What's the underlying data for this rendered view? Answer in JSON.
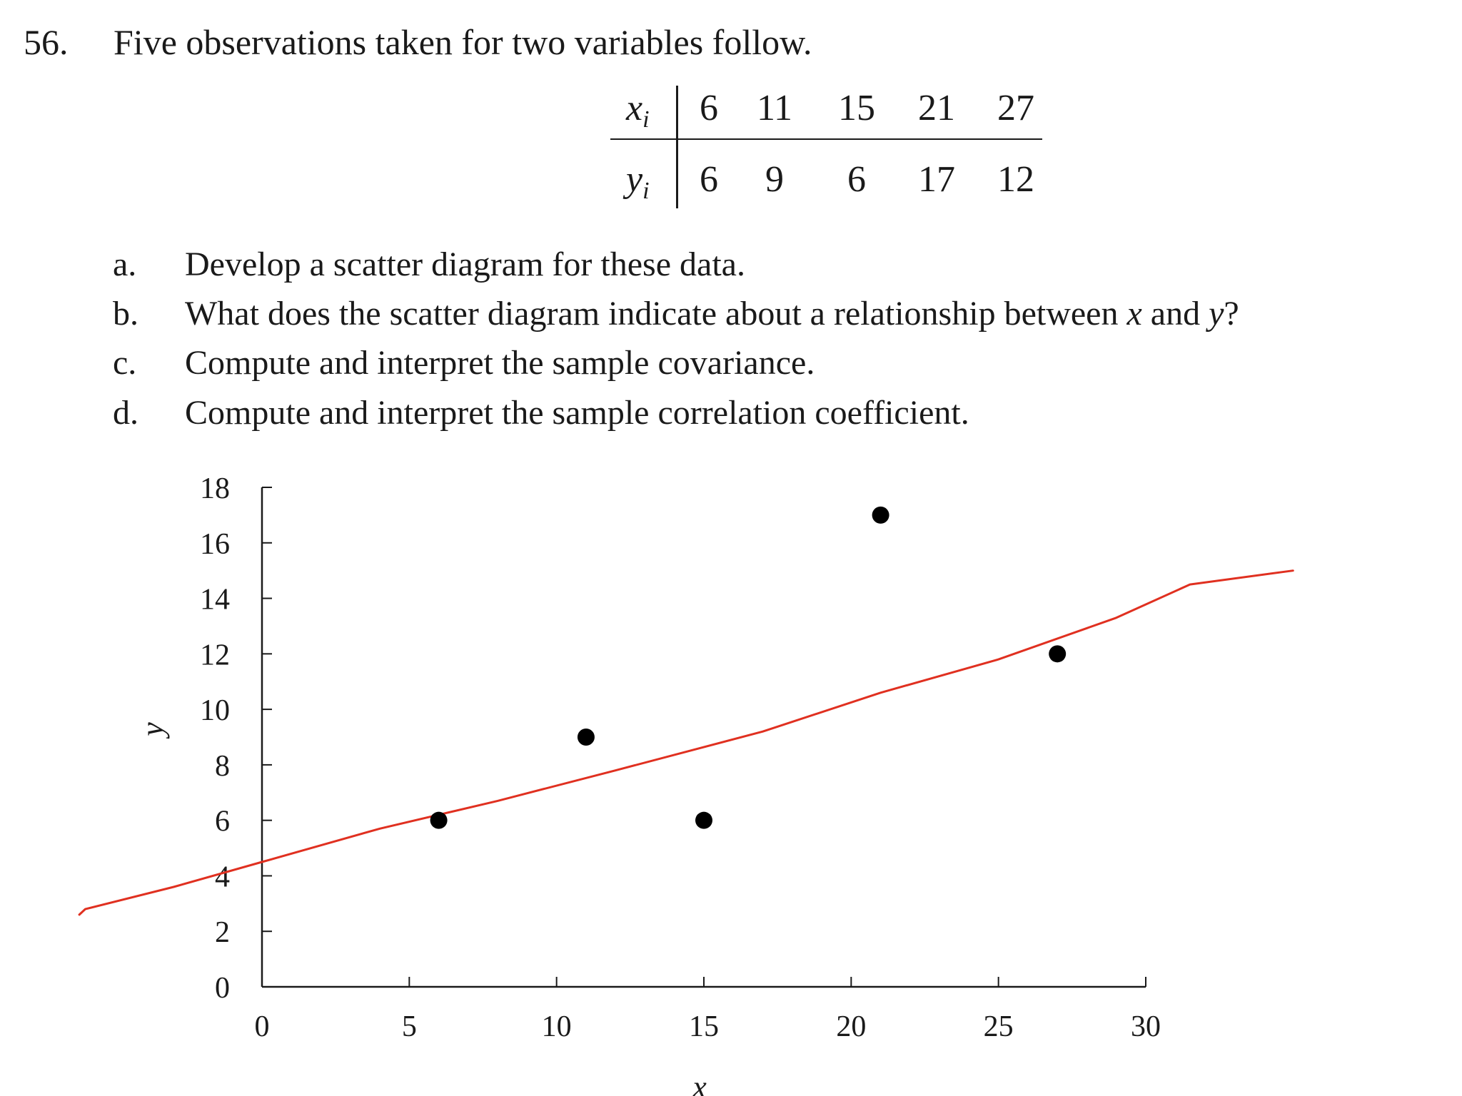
{
  "problem": {
    "number": "56.",
    "statement": "Five observations taken for two variables follow."
  },
  "table": {
    "x_label": "x",
    "y_label": "y",
    "subscript": "i",
    "x_values": [
      "6",
      "11",
      "15",
      "21",
      "27"
    ],
    "y_values": [
      "6",
      "9",
      "6",
      "17",
      "12"
    ]
  },
  "parts": [
    {
      "letter": "a.",
      "pre": "Develop a scatter diagram for these data.",
      "v1": "",
      "mid": "",
      "v2": "",
      "post": ""
    },
    {
      "letter": "b.",
      "pre": "What does the scatter diagram indicate about a relationship between ",
      "v1": "x",
      "mid": " and ",
      "v2": "y",
      "post": "?"
    },
    {
      "letter": "c.",
      "pre": "Compute and interpret the sample covariance.",
      "v1": "",
      "mid": "",
      "v2": "",
      "post": ""
    },
    {
      "letter": "d.",
      "pre": "Compute and interpret the sample correlation coefficient.",
      "v1": "",
      "mid": "",
      "v2": "",
      "post": ""
    }
  ],
  "chart_data": {
    "type": "scatter",
    "title": "",
    "xlabel": "x",
    "ylabel": "y",
    "xlim": [
      0,
      30
    ],
    "ylim": [
      0,
      18
    ],
    "xticks": [
      0,
      5,
      10,
      15,
      20,
      25,
      30
    ],
    "yticks": [
      0,
      2,
      4,
      6,
      8,
      10,
      12,
      14,
      16,
      18
    ],
    "grid": false,
    "legend": "none",
    "points": [
      {
        "x": 6,
        "y": 6
      },
      {
        "x": 11,
        "y": 9
      },
      {
        "x": 15,
        "y": 6
      },
      {
        "x": 21,
        "y": 17
      },
      {
        "x": 27,
        "y": 12
      }
    ],
    "handdrawn_trend_line": {
      "color": "#e03020",
      "points": [
        {
          "x": -6.2,
          "y": 2.6
        },
        {
          "x": -6.0,
          "y": 2.8
        },
        {
          "x": -3.0,
          "y": 3.6
        },
        {
          "x": 0,
          "y": 4.5
        },
        {
          "x": 4,
          "y": 5.7
        },
        {
          "x": 8,
          "y": 6.7
        },
        {
          "x": 12,
          "y": 7.8
        },
        {
          "x": 17,
          "y": 9.2
        },
        {
          "x": 21,
          "y": 10.6
        },
        {
          "x": 25,
          "y": 11.8
        },
        {
          "x": 29,
          "y": 13.3
        },
        {
          "x": 31.5,
          "y": 14.5
        },
        {
          "x": 35,
          "y": 15.0
        }
      ]
    }
  }
}
